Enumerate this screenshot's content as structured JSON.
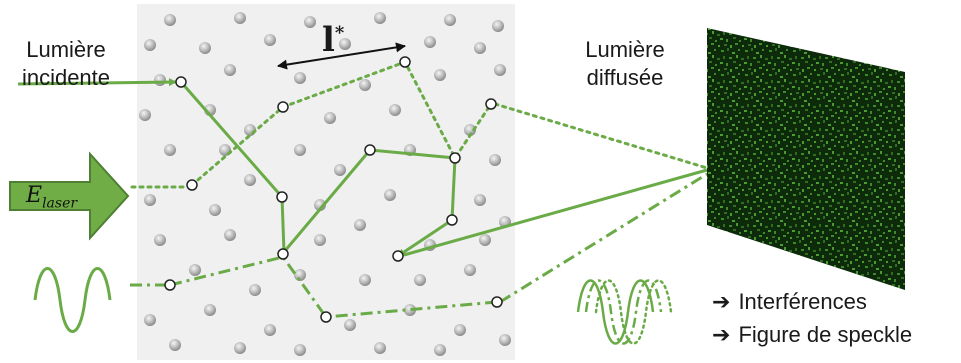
{
  "labels": {
    "incident_line1": "Lumière",
    "incident_line2": "incidente",
    "scattered_line1": "Lumière",
    "scattered_line2": "diffusée",
    "mean_free_path_symbol": "l",
    "mean_free_path_sup": "*",
    "laser_field_symbol": "E",
    "laser_field_sub": "laser"
  },
  "results": [
    {
      "arrow": "➔",
      "text": "Interférences"
    },
    {
      "arrow": "➔",
      "text": "Figure de speckle"
    }
  ],
  "colors": {
    "path_green": "#6aab47",
    "laser_arrow_fill": "#70ad47",
    "laser_arrow_stroke": "#4e7f33",
    "medium_bg": "#f0f0f0",
    "screen_dark": "#0d2a0b",
    "screen_light": "#3d8a2a"
  }
}
